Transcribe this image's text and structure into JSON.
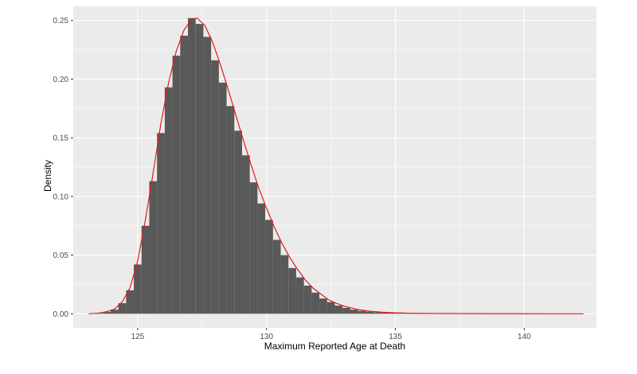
{
  "chart_data": {
    "type": "bar",
    "subtype": "histogram-with-density-line",
    "title": "",
    "xlabel": "Maximum Reported Age at Death",
    "ylabel": "Density",
    "xlim": [
      122.5,
      142.8
    ],
    "ylim": [
      -0.012,
      0.262
    ],
    "x_ticks": [
      125,
      130,
      135,
      140
    ],
    "x_tick_labels": [
      "125",
      "130",
      "135",
      "140"
    ],
    "y_ticks": [
      0,
      0.05,
      0.1,
      0.15,
      0.2,
      0.25
    ],
    "y_tick_labels": [
      "0.00",
      "0.05",
      "0.10",
      "0.15",
      "0.20",
      "0.25"
    ],
    "grid": true,
    "legend": "none",
    "colors": {
      "panel_background": "#ebebeb",
      "grid": "#ffffff",
      "bars": "#595959",
      "density_line": "#e41a1c"
    },
    "histogram": {
      "bin_width": 0.3,
      "bin_centers": [
        123.2,
        123.5,
        123.8,
        124.1,
        124.4,
        124.7,
        125.0,
        125.3,
        125.6,
        125.9,
        126.2,
        126.5,
        126.8,
        127.1,
        127.4,
        127.7,
        128.0,
        128.3,
        128.6,
        128.9,
        129.2,
        129.5,
        129.8,
        130.1,
        130.4,
        130.7,
        131.0,
        131.3,
        131.6,
        131.9,
        132.2,
        132.5,
        132.8,
        133.1,
        133.4,
        133.7,
        134.0,
        134.3,
        134.6,
        134.9,
        135.2,
        135.5,
        135.8,
        136.1,
        136.4,
        136.7,
        137.0,
        137.3,
        137.6,
        137.9,
        138.2,
        138.5,
        138.8,
        139.1,
        139.4,
        139.7,
        140.0,
        140.3,
        140.6,
        140.9,
        141.2,
        141.5,
        141.8,
        142.1
      ],
      "density": [
        0.0,
        0.0005,
        0.0015,
        0.0035,
        0.009,
        0.02,
        0.042,
        0.075,
        0.113,
        0.154,
        0.193,
        0.22,
        0.237,
        0.252,
        0.247,
        0.236,
        0.216,
        0.197,
        0.177,
        0.156,
        0.135,
        0.112,
        0.094,
        0.08,
        0.063,
        0.05,
        0.039,
        0.031,
        0.024,
        0.018,
        0.013,
        0.01,
        0.007,
        0.005,
        0.0035,
        0.0025,
        0.0018,
        0.0012,
        0.0009,
        0.0007,
        0.0005,
        0.0004,
        0.0003,
        0.0002,
        0.0002,
        0.0001,
        0.0001,
        0.0001,
        0.0001,
        0.0001,
        0.0,
        0.0,
        0.0,
        0.0,
        0.0,
        0.0,
        0.0,
        0.0,
        0.0,
        0.0,
        0.0,
        0.0,
        0.0,
        0.0
      ]
    },
    "density_line": {
      "x": [
        123.1,
        123.5,
        123.8,
        124.1,
        124.4,
        124.7,
        125.0,
        125.3,
        125.6,
        125.9,
        126.2,
        126.5,
        126.8,
        127.1,
        127.3,
        127.6,
        127.9,
        128.2,
        128.5,
        128.8,
        129.1,
        129.4,
        129.7,
        130.0,
        130.3,
        130.6,
        130.9,
        131.2,
        131.5,
        131.8,
        132.1,
        132.4,
        132.7,
        133.0,
        133.5,
        134.0,
        134.5,
        135.0,
        135.5,
        136.0,
        137.0,
        138.0,
        139.0,
        140.0,
        141.0,
        142.3
      ],
      "y": [
        0.0,
        0.0006,
        0.0018,
        0.004,
        0.01,
        0.022,
        0.045,
        0.08,
        0.12,
        0.162,
        0.197,
        0.224,
        0.242,
        0.251,
        0.252,
        0.246,
        0.232,
        0.213,
        0.192,
        0.17,
        0.148,
        0.127,
        0.107,
        0.09,
        0.074,
        0.06,
        0.048,
        0.038,
        0.029,
        0.022,
        0.017,
        0.012,
        0.009,
        0.0065,
        0.0038,
        0.0022,
        0.0013,
        0.0008,
        0.0005,
        0.0003,
        0.0002,
        0.0001,
        5e-05,
        2e-05,
        1e-05,
        0.0
      ]
    }
  }
}
